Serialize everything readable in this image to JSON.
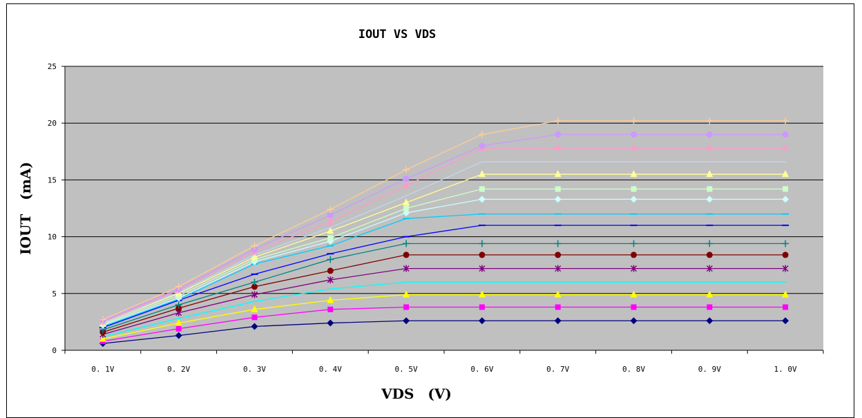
{
  "chart_data": {
    "type": "line",
    "title": "IOUT VS VDS",
    "xlabel": "VDS　(V)",
    "ylabel": "IOUT　(mA)",
    "categories": [
      "0.1V",
      "0.2V",
      "0.3V",
      "0.4V",
      "0.5V",
      "0.6V",
      "0.7V",
      "0.8V",
      "0.9V",
      "1.0V"
    ],
    "ylim": [
      0,
      25
    ],
    "yticks": [
      0,
      5,
      10,
      15,
      20,
      25
    ],
    "grid": true,
    "plot_background": "#c0c0c0",
    "series": [
      {
        "color": "#000080",
        "marker": "diamond",
        "values": [
          0.6,
          1.3,
          2.1,
          2.4,
          2.6,
          2.6,
          2.6,
          2.6,
          2.6,
          2.6
        ]
      },
      {
        "color": "#ff00ff",
        "marker": "square",
        "values": [
          0.8,
          1.9,
          2.9,
          3.6,
          3.8,
          3.8,
          3.8,
          3.8,
          3.8,
          3.8
        ]
      },
      {
        "color": "#ffff00",
        "marker": "triangle",
        "values": [
          1.0,
          2.4,
          3.6,
          4.4,
          4.9,
          4.9,
          4.9,
          4.9,
          4.9,
          4.9
        ]
      },
      {
        "color": "#00ffff",
        "marker": "none",
        "values": [
          1.2,
          2.8,
          4.3,
          5.4,
          6.0,
          6.0,
          6.0,
          6.0,
          6.0,
          6.0
        ]
      },
      {
        "color": "#800080",
        "marker": "asterisk",
        "values": [
          1.4,
          3.3,
          4.9,
          6.2,
          7.2,
          7.2,
          7.2,
          7.2,
          7.2,
          7.2
        ]
      },
      {
        "color": "#800000",
        "marker": "circle",
        "values": [
          1.6,
          3.7,
          5.6,
          7.0,
          8.4,
          8.4,
          8.4,
          8.4,
          8.4,
          8.4
        ]
      },
      {
        "color": "#008080",
        "marker": "plus",
        "values": [
          1.8,
          4.0,
          6.0,
          8.0,
          9.4,
          9.4,
          9.4,
          9.4,
          9.4,
          9.4
        ]
      },
      {
        "color": "#0000ff",
        "marker": "dash",
        "values": [
          2.0,
          4.4,
          6.7,
          8.5,
          10.0,
          11.0,
          11.0,
          11.0,
          11.0,
          11.0
        ]
      },
      {
        "color": "#00ccff",
        "marker": "dash",
        "values": [
          2.1,
          4.5,
          7.6,
          9.2,
          11.6,
          12.0,
          12.0,
          12.0,
          12.0,
          12.0
        ]
      },
      {
        "color": "#ccffff",
        "marker": "diamond",
        "values": [
          2.2,
          4.6,
          7.8,
          9.6,
          12.1,
          13.3,
          13.3,
          13.3,
          13.3,
          13.3
        ]
      },
      {
        "color": "#ccffcc",
        "marker": "square",
        "values": [
          2.3,
          4.8,
          8.0,
          9.9,
          12.5,
          14.2,
          14.2,
          14.2,
          14.2,
          14.2
        ]
      },
      {
        "color": "#ffff99",
        "marker": "triangle",
        "values": [
          2.4,
          5.0,
          8.2,
          10.5,
          13.0,
          15.5,
          15.5,
          15.5,
          15.5,
          15.5
        ]
      },
      {
        "color": "#c0d8f0",
        "marker": "none",
        "values": [
          2.4,
          5.1,
          8.4,
          10.8,
          13.6,
          16.6,
          16.6,
          16.6,
          16.6,
          16.6
        ]
      },
      {
        "color": "#ff99cc",
        "marker": "asterisk",
        "values": [
          2.5,
          5.3,
          8.7,
          11.3,
          14.5,
          17.8,
          17.8,
          17.8,
          17.8,
          17.8
        ]
      },
      {
        "color": "#cc99ff",
        "marker": "circle",
        "values": [
          2.6,
          5.4,
          8.9,
          11.9,
          15.1,
          18.0,
          19.0,
          19.0,
          19.0,
          19.0
        ]
      },
      {
        "color": "#ffcc99",
        "marker": "plus",
        "values": [
          2.7,
          5.6,
          9.2,
          12.4,
          15.9,
          19.0,
          20.2,
          20.2,
          20.2,
          20.2
        ]
      }
    ]
  }
}
